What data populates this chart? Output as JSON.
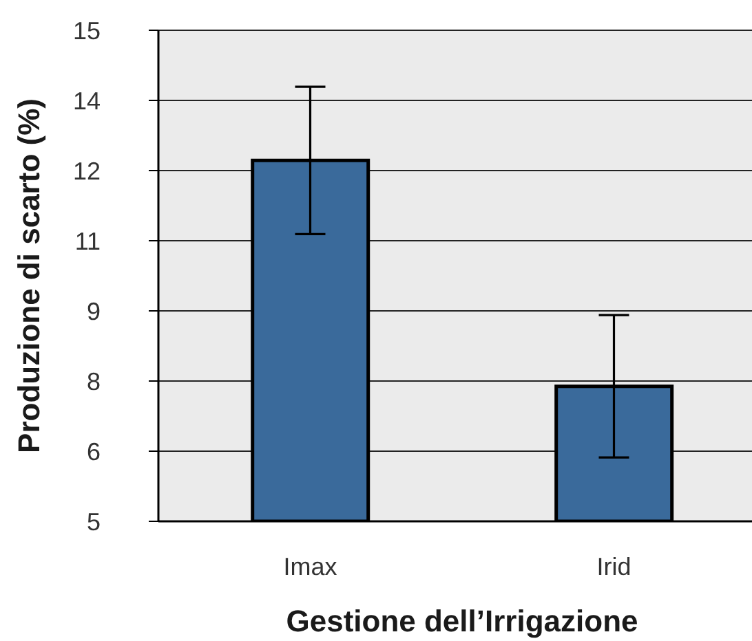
{
  "chart_data": {
    "type": "bar",
    "xlabel": "Gestione dell’Irrigazione",
    "ylabel": "Produzione di scarto (%)",
    "categories": [
      "Imax",
      "Irid"
    ],
    "values": [
      12.35,
      7.75
    ],
    "errors": [
      1.5,
      1.45
    ],
    "color": "#3a6a9b",
    "ylim": [
      5,
      15
    ],
    "yticks": [
      5,
      {
        "value": 6.4286,
        "label": "6"
      },
      {
        "value": 7.8571,
        "label": "8"
      },
      {
        "value": 9.2857,
        "label": "9"
      },
      {
        "value": 10.7143,
        "label": "11"
      },
      {
        "value": 12.1429,
        "label": "12"
      },
      {
        "value": 13.5714,
        "label": "14"
      },
      15
    ],
    "grid": "y"
  }
}
